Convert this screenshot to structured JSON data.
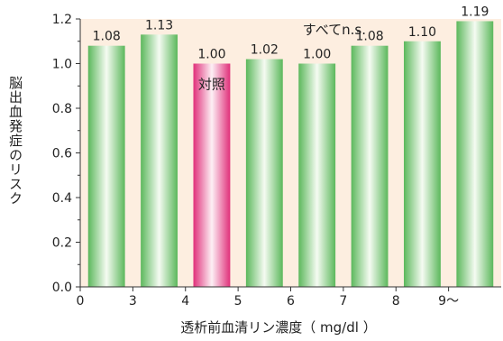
{
  "chart_data": {
    "type": "bar",
    "categories": [
      "0-3",
      "3-4",
      "4-5",
      "5-6",
      "6-7",
      "7-8",
      "8-9",
      "9~"
    ],
    "values": [
      1.08,
      1.13,
      1.0,
      1.02,
      1.0,
      1.08,
      1.1,
      1.19
    ],
    "value_labels": [
      "1.08",
      "1.13",
      "1.00",
      "1.02",
      "1.00",
      "1.08",
      "1.10",
      "1.19"
    ],
    "reference_category": "4-5",
    "reference_label": "対照",
    "annotation": "すべてn.s.",
    "xlabel": "透析前血清リン濃度（ mg/dl ）",
    "ylabel": "脳出血発症のリスク",
    "x_ticks": [
      "0",
      "3",
      "4",
      "5",
      "6",
      "7",
      "8",
      "9～"
    ],
    "y_ticks": [
      "0.0",
      "0.2",
      "0.4",
      "0.6",
      "0.8",
      "1.0",
      "1.2"
    ],
    "ylim": [
      0,
      1.2
    ],
    "grid": false,
    "colors": {
      "background": "#fdeee0",
      "bar": "#5cb85c",
      "reference_bar": "#e0307a"
    }
  }
}
